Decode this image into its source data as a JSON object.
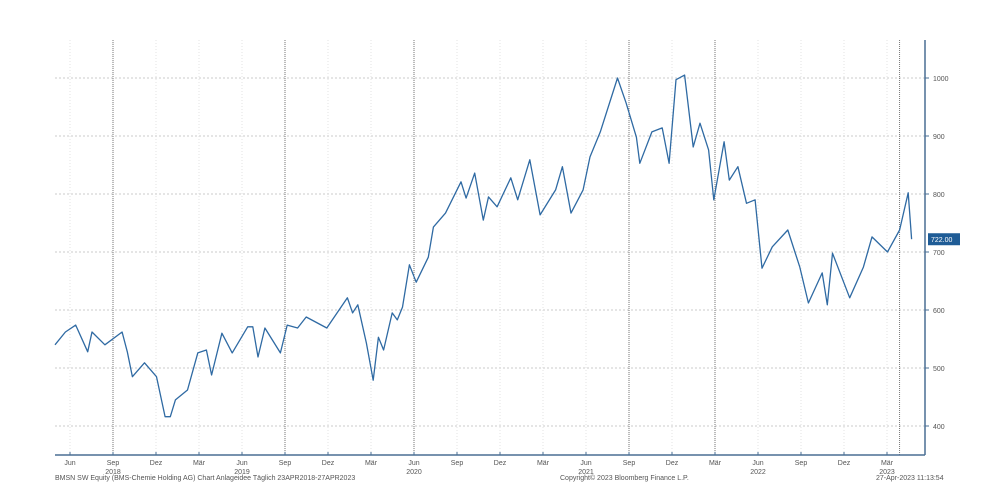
{
  "chart_data": {
    "type": "line",
    "title": "BMSN SW Equity (BMS-Chemie Holding AG) Chart Anlageidee",
    "xlabel": "",
    "ylabel": "",
    "ylim": [
      380,
      1060
    ],
    "yticks": [
      400,
      500,
      600,
      700,
      800,
      900,
      1000
    ],
    "xticks": [
      {
        "t": 2018.417,
        "label": "Jun"
      },
      {
        "t": 2018.667,
        "label": "Sep"
      },
      {
        "t": 2018.917,
        "label": "Dez"
      },
      {
        "t": 2019.167,
        "label": "Mär"
      },
      {
        "t": 2019.417,
        "label": "Jun"
      },
      {
        "t": 2019.667,
        "label": "Sep"
      },
      {
        "t": 2019.917,
        "label": "Dez"
      },
      {
        "t": 2020.167,
        "label": "Mär"
      },
      {
        "t": 2020.417,
        "label": "Jun"
      },
      {
        "t": 2020.667,
        "label": "Sep"
      },
      {
        "t": 2020.917,
        "label": "Dez"
      },
      {
        "t": 2021.167,
        "label": "Mär"
      },
      {
        "t": 2021.417,
        "label": "Jun"
      },
      {
        "t": 2021.667,
        "label": "Sep"
      },
      {
        "t": 2021.917,
        "label": "Dez"
      },
      {
        "t": 2022.167,
        "label": "Mär"
      },
      {
        "t": 2022.417,
        "label": "Jun"
      },
      {
        "t": 2022.667,
        "label": "Sep"
      },
      {
        "t": 2022.917,
        "label": "Dez"
      },
      {
        "t": 2023.167,
        "label": "Mär"
      }
    ],
    "year_labels": [
      {
        "t": 2018.667,
        "label": "2018"
      },
      {
        "t": 2019.417,
        "label": "2019"
      },
      {
        "t": 2020.417,
        "label": "2020"
      },
      {
        "t": 2021.417,
        "label": "2021"
      },
      {
        "t": 2022.417,
        "label": "2022"
      },
      {
        "t": 2023.167,
        "label": "2023"
      }
    ],
    "major_gridlines_t": [
      2018.667,
      2019.667,
      2020.417,
      2021.667,
      2022.167,
      2023.24
    ],
    "grid": true,
    "last_price_label": "722.00",
    "series": [
      {
        "name": "BMSN SW Equity",
        "color": "#2f6aa3",
        "x": [
          2018.33,
          2018.39,
          2018.45,
          2018.52,
          2018.545,
          2018.62,
          2018.72,
          2018.75,
          2018.78,
          2018.85,
          2018.92,
          2018.97,
          2019.0,
          2019.03,
          2019.1,
          2019.16,
          2019.21,
          2019.24,
          2019.3,
          2019.36,
          2019.45,
          2019.48,
          2019.51,
          2019.55,
          2019.64,
          2019.68,
          2019.74,
          2019.79,
          2019.91,
          2019.97,
          2020.03,
          2020.06,
          2020.09,
          2020.14,
          2020.18,
          2020.21,
          2020.24,
          2020.29,
          2020.32,
          2020.35,
          2020.39,
          2020.43,
          2020.5,
          2020.53,
          2020.6,
          2020.69,
          2020.72,
          2020.77,
          2020.82,
          2020.85,
          2020.9,
          2020.98,
          2021.02,
          2021.09,
          2021.15,
          2021.24,
          2021.28,
          2021.33,
          2021.4,
          2021.44,
          2021.5,
          2021.6,
          2021.65,
          2021.71,
          2021.73,
          2021.8,
          2021.86,
          2021.9,
          2021.94,
          2021.99,
          2022.04,
          2022.08,
          2022.13,
          2022.16,
          2022.22,
          2022.25,
          2022.3,
          2022.35,
          2022.4,
          2022.44,
          2022.5,
          2022.59,
          2022.66,
          2022.71,
          2022.79,
          2022.82,
          2022.85,
          2022.95,
          2023.03,
          2023.08,
          2023.17,
          2023.24,
          2023.29,
          2023.31
        ],
        "values": [
          540,
          562,
          574,
          528,
          562,
          540,
          562,
          528,
          485,
          509,
          485,
          416,
          416,
          445,
          462,
          526,
          531,
          488,
          560,
          526,
          571,
          571,
          519,
          569,
          526,
          574,
          569,
          588,
          569,
          595,
          621,
          595,
          609,
          543,
          479,
          553,
          531,
          595,
          583,
          605,
          678,
          648,
          691,
          743,
          767,
          821,
          793,
          836,
          755,
          795,
          778,
          828,
          790,
          859,
          764,
          807,
          847,
          767,
          807,
          864,
          907,
          1000,
          957,
          898,
          853,
          907,
          914,
          853,
          997,
          1005,
          881,
          922,
          876,
          790,
          890,
          824,
          847,
          784,
          790,
          672,
          709,
          738,
          674,
          612,
          664,
          609,
          698,
          621,
          674,
          726,
          700,
          738,
          802,
          722
        ]
      }
    ]
  },
  "footer": {
    "left": "BMSN SW Equity (BMS-Chemie Holding AG) Chart Anlageidee   Täglich 23APR2018-27APR2023",
    "center": "Copyright© 2023 Bloomberg Finance L.P.",
    "right": "27-Apr-2023 11:13:54"
  }
}
